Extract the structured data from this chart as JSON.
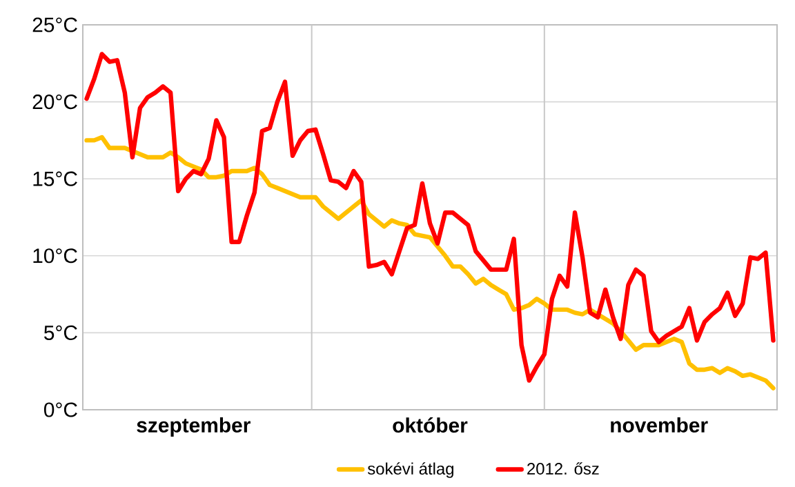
{
  "chart_data": {
    "type": "line",
    "categories": [
      null,
      null,
      null,
      null,
      null,
      null,
      null,
      null,
      null,
      null,
      null,
      null,
      null,
      null,
      "szeptember",
      null,
      null,
      null,
      null,
      null,
      null,
      null,
      null,
      null,
      null,
      null,
      null,
      null,
      null,
      null,
      null,
      null,
      null,
      null,
      null,
      null,
      null,
      null,
      null,
      null,
      null,
      null,
      null,
      null,
      null,
      "október",
      null,
      null,
      null,
      null,
      null,
      null,
      null,
      null,
      null,
      null,
      null,
      null,
      null,
      null,
      null,
      null,
      null,
      null,
      null,
      null,
      null,
      null,
      null,
      null,
      null,
      null,
      null,
      null,
      null,
      "november",
      null,
      null,
      null,
      null,
      null,
      null,
      null,
      null,
      null,
      null,
      null,
      null,
      null,
      null,
      null
    ],
    "ylim": [
      0,
      25
    ],
    "yticks": [
      {
        "value": 0,
        "label": "0°C"
      },
      {
        "value": 5,
        "label": "5°C"
      },
      {
        "value": 10,
        "label": "10°C"
      },
      {
        "value": 15,
        "label": "15°C"
      },
      {
        "value": 20,
        "label": "20°C"
      },
      {
        "value": 25,
        "label": "25°C"
      }
    ],
    "grid": "y",
    "legend": "bottom",
    "line_style": "solid",
    "marker": "none",
    "series": [
      {
        "name": "sokévi átlag",
        "color": "#ffc000",
        "values": [
          17.5,
          17.5,
          17.7,
          17.0,
          17.0,
          17.0,
          16.8,
          16.6,
          16.4,
          16.4,
          16.4,
          16.7,
          16.4,
          16.0,
          15.8,
          15.6,
          15.1,
          15.1,
          15.2,
          15.5,
          15.5,
          15.5,
          15.7,
          15.3,
          14.6,
          14.4,
          14.2,
          14.0,
          13.8,
          13.8,
          13.8,
          13.2,
          12.8,
          12.4,
          12.8,
          13.2,
          13.6,
          12.7,
          12.3,
          11.9,
          12.3,
          12.1,
          12.0,
          11.4,
          11.3,
          11.2,
          10.6,
          10.0,
          9.3,
          9.3,
          8.8,
          8.2,
          8.5,
          8.1,
          7.8,
          7.5,
          6.5,
          6.6,
          6.8,
          7.2,
          6.9,
          6.5,
          6.5,
          6.5,
          6.3,
          6.2,
          6.5,
          6.2,
          5.9,
          5.6,
          5.1,
          4.5,
          3.9,
          4.2,
          4.2,
          4.2,
          4.4,
          4.6,
          4.4,
          3.0,
          2.6,
          2.6,
          2.7,
          2.4,
          2.7,
          2.5,
          2.2,
          2.3,
          2.1,
          1.9,
          1.4
        ]
      },
      {
        "name": "2012. ősz",
        "color": "#ff0000",
        "values": [
          20.2,
          21.5,
          23.1,
          22.6,
          22.7,
          20.6,
          16.4,
          19.6,
          20.3,
          20.6,
          21.0,
          20.6,
          14.2,
          15.0,
          15.5,
          15.3,
          16.3,
          18.8,
          17.7,
          10.9,
          10.9,
          12.6,
          14.1,
          18.1,
          18.3,
          20.0,
          21.3,
          16.5,
          17.5,
          18.1,
          18.2,
          16.6,
          14.9,
          14.8,
          14.4,
          15.5,
          14.8,
          9.3,
          9.4,
          9.6,
          8.8,
          10.3,
          11.8,
          12.0,
          14.7,
          12.1,
          10.8,
          12.8,
          12.8,
          12.4,
          12.0,
          10.3,
          9.7,
          9.1,
          9.1,
          9.1,
          11.1,
          4.2,
          1.9,
          2.8,
          3.6,
          7.2,
          8.7,
          8.0,
          12.8,
          9.9,
          6.3,
          6.0,
          7.8,
          6.0,
          4.6,
          8.1,
          9.1,
          8.7,
          5.1,
          4.4,
          4.8,
          5.1,
          5.4,
          6.6,
          4.5,
          5.7,
          6.2,
          6.6,
          7.6,
          6.1,
          6.9,
          9.9,
          9.8,
          10.2,
          4.5
        ]
      }
    ]
  }
}
